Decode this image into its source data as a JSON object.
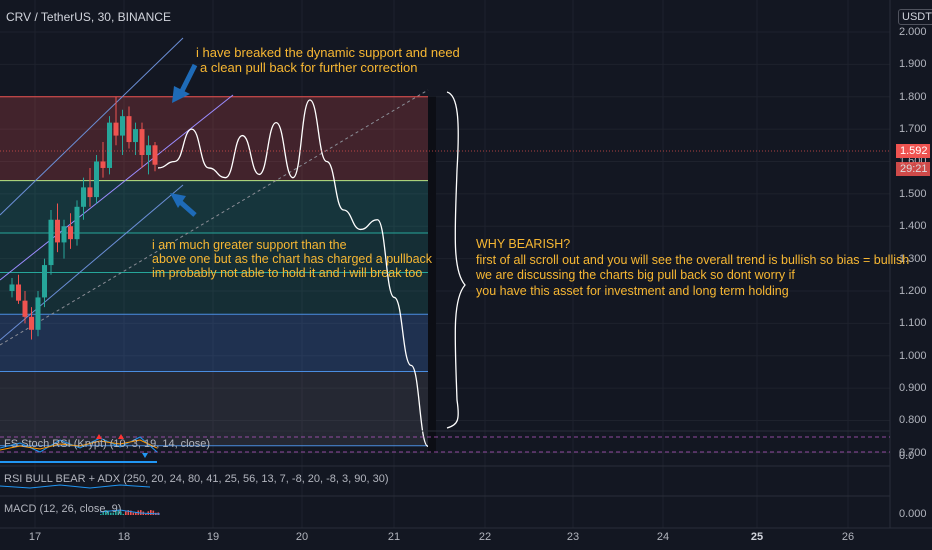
{
  "header": {
    "symbol": "CRV / TetherUS, 30, BINANCE",
    "currency": "USDT"
  },
  "price_axis": {
    "ticks": [
      "2.000",
      "1.900",
      "1.800",
      "1.700",
      "1.600",
      "1.500",
      "1.400",
      "1.300",
      "1.200",
      "1.100",
      "1.000",
      "0.900",
      "0.800",
      "0.700"
    ],
    "current_price": "1.592",
    "countdown": "29:21",
    "osc_ticks": [
      "0.0",
      "0.000"
    ]
  },
  "time_axis": {
    "labels": [
      "17",
      "18",
      "19",
      "20",
      "21",
      "22",
      "23",
      "24",
      "25",
      "26"
    ],
    "bold_label": "25"
  },
  "annotations": {
    "top_note": [
      "i have breaked the dynamic support and need",
      "a clean pull back for further correction"
    ],
    "mid_note": [
      "i am much greater support than the",
      "above one but as the chart has charged a pullback",
      "im probably not able to hold it and i will break too"
    ],
    "right_note": [
      "WHY BEARISH?",
      "first of all scroll out and you will see the overall trend is bullish so bias = bullish",
      "we are discussing the charts big pull back so dont worry if",
      "you have this asset for investment and long term holding"
    ]
  },
  "indicators": {
    "stoch": "FS Stoch RSI (Krypt) (10, 3, 19, 14, close)",
    "rsi": "RSI BULL BEAR + ADX (250, 20, 24, 80, 41, 25, 56, 13, 7, -8, 20, -8, 3, 90, 30)",
    "macd": "MACD (12, 26, close, 9)"
  },
  "colors": {
    "background": "#131722",
    "up": "#26a69a",
    "down": "#ef5350",
    "annotation": "#f7b733",
    "arrow": "#1e6bb8"
  },
  "chart_data": {
    "type": "candlestick",
    "y_range": [
      0.7,
      2.0
    ],
    "x_range": [
      "17",
      "26"
    ],
    "current_price": 1.592,
    "zones": [
      {
        "from": 1.541,
        "to": 1.8,
        "color": "red"
      },
      {
        "from": 1.379,
        "to": 1.541,
        "color": "green"
      },
      {
        "from": 1.257,
        "to": 1.379,
        "color": "teal"
      },
      {
        "from": 1.128,
        "to": 1.257,
        "color": "teal"
      },
      {
        "from": 0.951,
        "to": 1.128,
        "color": "blue"
      },
      {
        "from": 0.722,
        "to": 0.951,
        "color": "gray"
      }
    ],
    "projection_path_price": [
      1.58,
      1.6,
      1.7,
      1.58,
      1.55,
      1.68,
      1.56,
      1.72,
      1.55,
      1.79,
      1.6,
      1.45,
      1.39,
      1.42,
      1.18,
      0.97,
      0.72
    ],
    "candles": [
      [
        1.2,
        1.24,
        1.18,
        1.22
      ],
      [
        1.22,
        1.25,
        1.16,
        1.17
      ],
      [
        1.17,
        1.2,
        1.1,
        1.12
      ],
      [
        1.12,
        1.15,
        1.05,
        1.08
      ],
      [
        1.08,
        1.2,
        1.06,
        1.18
      ],
      [
        1.18,
        1.3,
        1.15,
        1.28
      ],
      [
        1.28,
        1.45,
        1.25,
        1.42
      ],
      [
        1.42,
        1.47,
        1.32,
        1.35
      ],
      [
        1.35,
        1.42,
        1.3,
        1.4
      ],
      [
        1.4,
        1.44,
        1.33,
        1.36
      ],
      [
        1.36,
        1.48,
        1.34,
        1.46
      ],
      [
        1.46,
        1.55,
        1.42,
        1.52
      ],
      [
        1.52,
        1.58,
        1.46,
        1.49
      ],
      [
        1.49,
        1.62,
        1.47,
        1.6
      ],
      [
        1.6,
        1.66,
        1.55,
        1.58
      ],
      [
        1.58,
        1.74,
        1.56,
        1.72
      ],
      [
        1.72,
        1.8,
        1.65,
        1.68
      ],
      [
        1.68,
        1.76,
        1.62,
        1.74
      ],
      [
        1.74,
        1.77,
        1.64,
        1.66
      ],
      [
        1.66,
        1.72,
        1.62,
        1.7
      ],
      [
        1.7,
        1.72,
        1.58,
        1.62
      ],
      [
        1.62,
        1.68,
        1.56,
        1.65
      ],
      [
        1.65,
        1.66,
        1.57,
        1.59
      ]
    ]
  }
}
